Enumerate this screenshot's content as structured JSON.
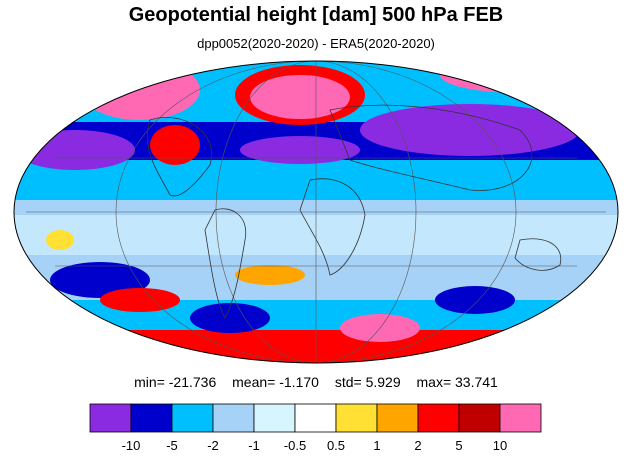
{
  "title": "Geopotential height [dam] 500 hPa FEB",
  "subtitle": "dpp0052(2020-2020) - ERA5(2020-2020)",
  "stats": {
    "min": "min= -21.736",
    "mean": "mean=  -1.170",
    "std": "std=   5.929",
    "max": "max=  33.741"
  },
  "colorbar": {
    "colors": [
      "#8a2be2",
      "#0000cd",
      "#00bfff",
      "#a6d2f7",
      "#d7f5ff",
      "#ffffff",
      "#ffe033",
      "#ffa500",
      "#ff0000",
      "#c00000",
      "#ff69b4"
    ],
    "labels": [
      "-10",
      "-5",
      "-2",
      "-1",
      "-0.5",
      "0.5",
      "1",
      "2",
      "5",
      "10"
    ]
  }
}
